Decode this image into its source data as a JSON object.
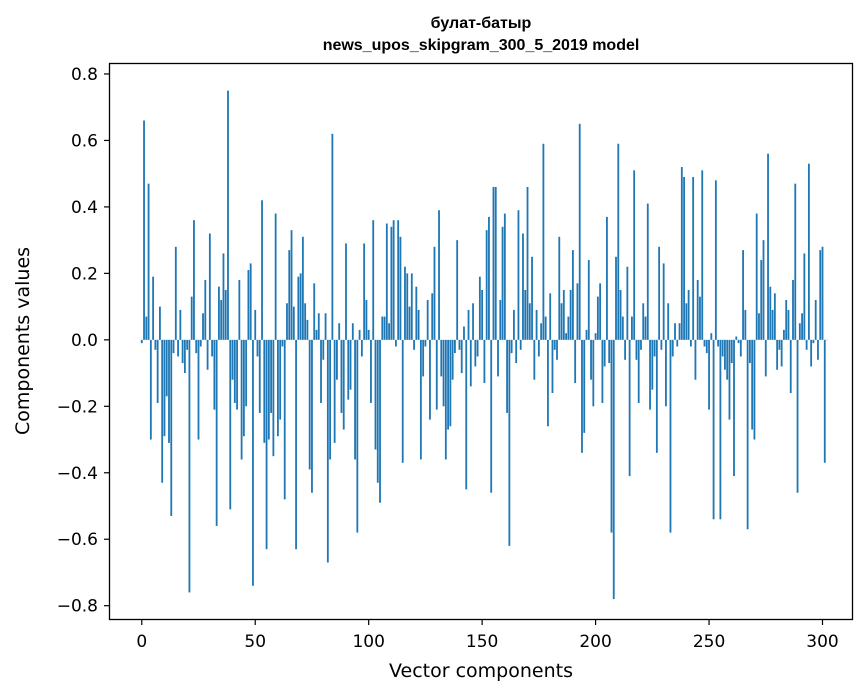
{
  "chart_data": {
    "type": "bar",
    "title_line1": "булат-батыр",
    "title_line2": "news_upos_skipgram_300_5_2019 model",
    "xlabel": "Vector components",
    "ylabel": "Components values",
    "xlim": [
      -14,
      313
    ],
    "ylim": [
      -0.84,
      0.83
    ],
    "xticks": [
      0,
      50,
      100,
      150,
      200,
      250,
      300
    ],
    "yticks": [
      -0.8,
      -0.6,
      -0.4,
      -0.2,
      0.0,
      0.2,
      0.4,
      0.6,
      0.8
    ],
    "ytick_labels": [
      "−0.8",
      "−0.6",
      "−0.4",
      "−0.2",
      "0.0",
      "0.2",
      "0.4",
      "0.6",
      "0.8"
    ],
    "bar_color": "#1f77b4",
    "grid": false,
    "values": [
      -0.01,
      0.66,
      0.07,
      0.47,
      -0.3,
      0.19,
      -0.03,
      -0.19,
      0.1,
      -0.43,
      -0.29,
      -0.17,
      -0.31,
      -0.53,
      -0.04,
      0.28,
      -0.05,
      0.09,
      -0.07,
      -0.1,
      -0.03,
      -0.76,
      0.13,
      0.36,
      -0.04,
      -0.3,
      -0.02,
      0.08,
      0.18,
      -0.09,
      0.32,
      -0.05,
      -0.21,
      -0.56,
      0.16,
      0.12,
      0.26,
      0.15,
      0.75,
      -0.51,
      -0.12,
      -0.19,
      -0.21,
      0.18,
      -0.36,
      -0.29,
      -0.2,
      0.21,
      0.23,
      -0.74,
      0.09,
      -0.05,
      -0.22,
      0.42,
      -0.31,
      -0.63,
      -0.3,
      -0.22,
      -0.35,
      0.38,
      -0.29,
      -0.24,
      -0.02,
      -0.48,
      0.11,
      0.27,
      0.33,
      0.1,
      -0.63,
      0.19,
      0.2,
      0.31,
      0.11,
      0.06,
      -0.39,
      -0.46,
      0.17,
      0.03,
      0.08,
      -0.19,
      -0.06,
      0.08,
      -0.67,
      -0.36,
      0.62,
      -0.31,
      -0.12,
      0.05,
      -0.22,
      -0.27,
      0.29,
      -0.18,
      -0.15,
      0.05,
      -0.36,
      -0.58,
      0.03,
      -0.05,
      0.29,
      0.12,
      0.03,
      -0.19,
      0.36,
      -0.33,
      -0.43,
      -0.49,
      0.07,
      0.07,
      0.35,
      0.05,
      0.34,
      0.36,
      -0.02,
      0.36,
      0.31,
      -0.37,
      0.22,
      0.2,
      0.1,
      0.2,
      -0.03,
      0.16,
      0.09,
      -0.36,
      -0.11,
      -0.02,
      0.12,
      -0.24,
      0.14,
      0.28,
      -0.21,
      0.39,
      -0.11,
      -0.2,
      -0.36,
      -0.27,
      -0.26,
      -0.12,
      -0.04,
      0.3,
      -0.03,
      -0.1,
      0.04,
      -0.45,
      0.09,
      -0.14,
      0.11,
      -0.08,
      -0.05,
      0.19,
      0.15,
      -0.13,
      0.33,
      0.37,
      -0.46,
      0.46,
      0.46,
      -0.11,
      0.12,
      0.34,
      0.38,
      -0.22,
      -0.62,
      -0.04,
      0.09,
      -0.07,
      0.39,
      -0.03,
      0.32,
      0.15,
      0.46,
      0.11,
      0.25,
      -0.12,
      0.09,
      -0.05,
      0.05,
      0.59,
      0.07,
      -0.26,
      0.14,
      -0.16,
      -0.03,
      -0.06,
      0.31,
      0.11,
      0.15,
      0.02,
      0.07,
      0.15,
      0.27,
      -0.13,
      0.17,
      0.65,
      -0.34,
      -0.28,
      0.03,
      0.24,
      -0.12,
      -0.2,
      0.02,
      0.13,
      0.17,
      -0.19,
      -0.08,
      0.37,
      -0.07,
      -0.58,
      -0.78,
      0.25,
      0.59,
      0.15,
      0.07,
      -0.06,
      0.22,
      -0.41,
      0.07,
      0.51,
      -0.06,
      -0.19,
      -0.03,
      0.11,
      0.07,
      0.41,
      -0.21,
      -0.15,
      -0.05,
      -0.34,
      0.28,
      -0.03,
      0.23,
      -0.2,
      0.11,
      -0.58,
      -0.05,
      0.05,
      -0.02,
      0.05,
      0.52,
      0.49,
      0.11,
      0.15,
      -0.02,
      0.49,
      -0.12,
      0.18,
      0.13,
      0.51,
      -0.02,
      -0.04,
      -0.21,
      0.02,
      -0.54,
      0.48,
      -0.02,
      -0.54,
      -0.05,
      -0.09,
      -0.12,
      -0.24,
      -0.07,
      -0.41,
      0.01,
      -0.01,
      -0.05,
      0.27,
      0.09,
      -0.57,
      -0.07,
      -0.27,
      -0.3,
      0.38,
      0.08,
      0.24,
      0.3,
      -0.11,
      0.56,
      0.16,
      0.09,
      0.14,
      -0.09,
      -0.03,
      -0.08,
      0.03,
      0.12,
      0.09,
      -0.16,
      0.18,
      0.47,
      -0.46,
      0.05,
      0.08,
      0.26,
      -0.03,
      0.53,
      -0.08,
      -0.01,
      0.12,
      -0.06,
      0.27,
      0.28,
      -0.37,
      0.0
    ]
  }
}
